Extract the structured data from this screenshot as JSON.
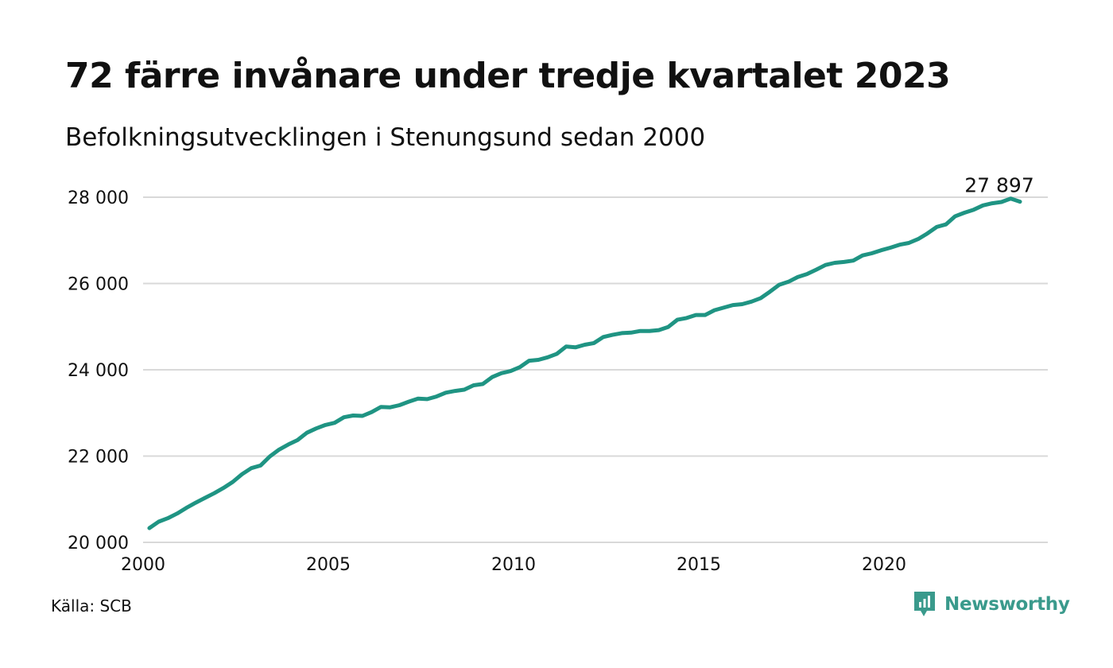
{
  "title": "72 färre invånare under tredje kvartalet 2023",
  "subtitle": "Befolkningsutvecklingen i Stenungsund sedan 2000",
  "source": "Källa: SCB",
  "brand": {
    "name": "Newsworthy",
    "color": "#3a9a8c"
  },
  "colors": {
    "line": "#1f9483",
    "grid": "#d9d9d9",
    "text": "#111111"
  },
  "chart_data": {
    "type": "line",
    "x_ticks": [
      2000,
      2005,
      2010,
      2015,
      2020
    ],
    "x_tick_labels": [
      "2000",
      "2005",
      "2010",
      "2015",
      "2020"
    ],
    "y_ticks": [
      20000,
      22000,
      24000,
      26000,
      28000
    ],
    "y_tick_labels": [
      "20 000",
      "22 000",
      "24 000",
      "26 000",
      "28 000"
    ],
    "xlim": [
      2000,
      2024.3
    ],
    "ylim": [
      20000,
      28000
    ],
    "grid": true,
    "end_label": "27 897",
    "x": [
      2000.17,
      2000.42,
      2000.67,
      2000.92,
      2001.17,
      2001.42,
      2001.67,
      2001.92,
      2002.17,
      2002.42,
      2002.67,
      2002.92,
      2003.17,
      2003.42,
      2003.67,
      2003.92,
      2004.17,
      2004.42,
      2004.67,
      2004.92,
      2005.17,
      2005.42,
      2005.67,
      2005.92,
      2006.17,
      2006.42,
      2006.67,
      2006.92,
      2007.17,
      2007.42,
      2007.67,
      2007.92,
      2008.17,
      2008.42,
      2008.67,
      2008.92,
      2009.17,
      2009.42,
      2009.67,
      2009.92,
      2010.17,
      2010.42,
      2010.67,
      2010.92,
      2011.17,
      2011.42,
      2011.67,
      2011.92,
      2012.17,
      2012.42,
      2012.67,
      2012.92,
      2013.17,
      2013.42,
      2013.67,
      2013.92,
      2014.17,
      2014.42,
      2014.67,
      2014.92,
      2015.17,
      2015.42,
      2015.67,
      2015.92,
      2016.17,
      2016.42,
      2016.67,
      2016.92,
      2017.17,
      2017.42,
      2017.67,
      2017.92,
      2018.17,
      2018.42,
      2018.67,
      2018.92,
      2019.17,
      2019.42,
      2019.67,
      2019.92,
      2020.17,
      2020.42,
      2020.67,
      2020.92,
      2021.17,
      2021.42,
      2021.67,
      2021.92,
      2022.17,
      2022.42,
      2022.67,
      2022.92,
      2023.17,
      2023.42,
      2023.67
    ],
    "series": [
      {
        "values": [
          20330,
          20480,
          20560,
          20670,
          20800,
          20920,
          21030,
          21140,
          21260,
          21400,
          21580,
          21720,
          21780,
          21990,
          22150,
          22270,
          22370,
          22540,
          22640,
          22720,
          22770,
          22900,
          22940,
          22930,
          23020,
          23140,
          23130,
          23180,
          23260,
          23330,
          23320,
          23380,
          23470,
          23510,
          23540,
          23640,
          23670,
          23830,
          23920,
          23970,
          24060,
          24210,
          24230,
          24290,
          24370,
          24540,
          24520,
          24580,
          24620,
          24760,
          24810,
          24850,
          24860,
          24900,
          24900,
          24920,
          24990,
          25160,
          25200,
          25270,
          25270,
          25380,
          25440,
          25500,
          25520,
          25580,
          25660,
          25810,
          25970,
          26040,
          26150,
          26220,
          26320,
          26430,
          26480,
          26500,
          26530,
          26650,
          26700,
          26770,
          26830,
          26900,
          26940,
          27030,
          27160,
          27310,
          27370,
          27560,
          27640,
          27710,
          27810,
          27860,
          27890,
          27969,
          27897
        ]
      }
    ]
  }
}
